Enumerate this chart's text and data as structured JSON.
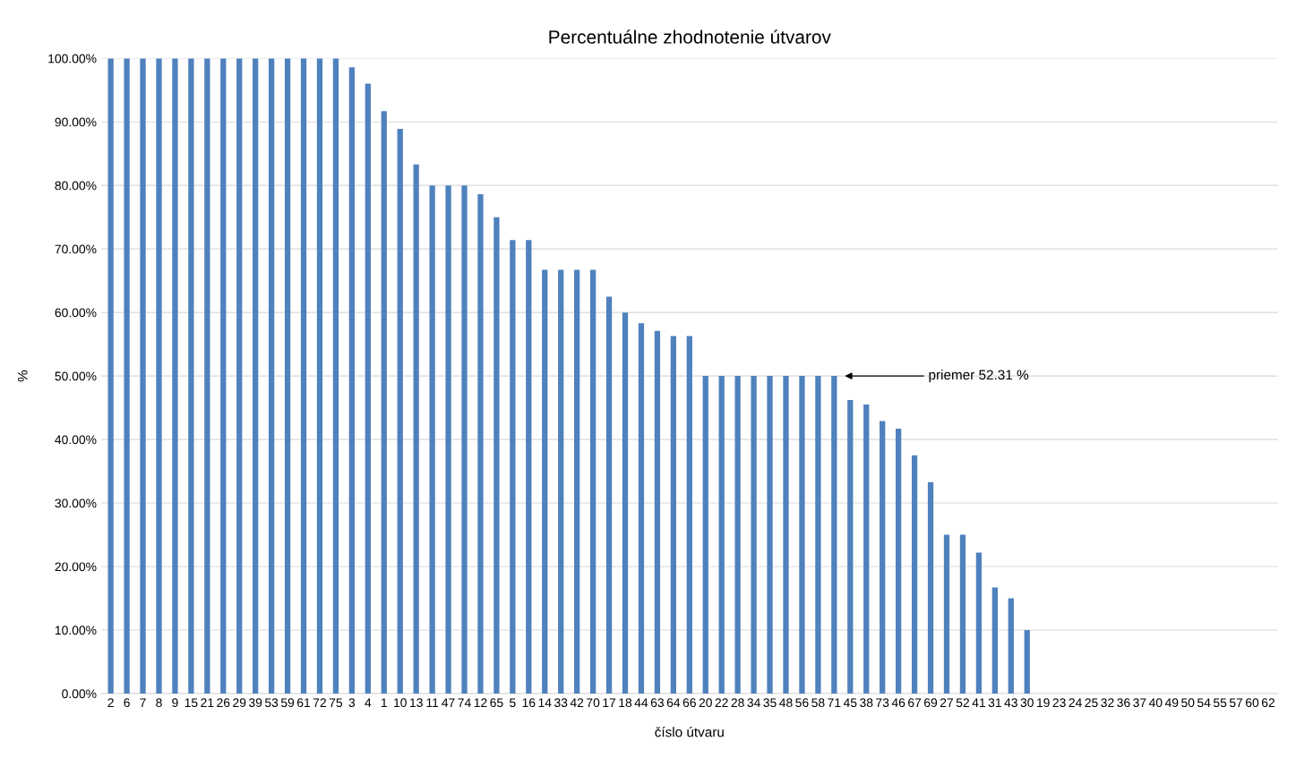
{
  "chart_data": {
    "type": "bar",
    "title": "Percentuálne zhodnotenie útvarov",
    "xlabel": "číslo útvaru",
    "ylabel": "%",
    "categories": [
      "2",
      "6",
      "7",
      "8",
      "9",
      "15",
      "21",
      "26",
      "29",
      "39",
      "53",
      "59",
      "61",
      "72",
      "75",
      "3",
      "4",
      "1",
      "10",
      "13",
      "11",
      "47",
      "74",
      "12",
      "65",
      "5",
      "16",
      "14",
      "33",
      "42",
      "70",
      "17",
      "18",
      "44",
      "63",
      "64",
      "66",
      "20",
      "22",
      "28",
      "34",
      "35",
      "48",
      "56",
      "58",
      "71",
      "45",
      "38",
      "73",
      "46",
      "67",
      "69",
      "27",
      "52",
      "41",
      "31",
      "43",
      "30",
      "19",
      "23",
      "24",
      "25",
      "32",
      "36",
      "37",
      "40",
      "49",
      "50",
      "54",
      "55",
      "57",
      "60",
      "62"
    ],
    "values": [
      100,
      100,
      100,
      100,
      100,
      100,
      100,
      100,
      100,
      100,
      100,
      100,
      100,
      100,
      100,
      98.6,
      96,
      91.7,
      88.9,
      83.3,
      80,
      80,
      80,
      78.6,
      75,
      71.4,
      71.4,
      66.7,
      66.7,
      66.7,
      66.7,
      62.5,
      60,
      58.3,
      57.1,
      56.3,
      56.3,
      50,
      50,
      50,
      50,
      50,
      50,
      50,
      50,
      50,
      46.2,
      45.5,
      42.9,
      41.7,
      37.5,
      33.3,
      25,
      25,
      22.2,
      16.7,
      15,
      10,
      0,
      0,
      0,
      0,
      0,
      0,
      0,
      0,
      0,
      0,
      0,
      0,
      0,
      0,
      0
    ],
    "color": "#4f81bd",
    "ylim": [
      0,
      100
    ],
    "yticks": [
      {
        "value": 0,
        "label": "0.00%"
      },
      {
        "value": 10,
        "label": "10.00%"
      },
      {
        "value": 20,
        "label": "20.00%"
      },
      {
        "value": 30,
        "label": "30.00%"
      },
      {
        "value": 40,
        "label": "40.00%"
      },
      {
        "value": 50,
        "label": "50.00%"
      },
      {
        "value": 60,
        "label": "60.00%"
      },
      {
        "value": 70,
        "label": "70.00%"
      },
      {
        "value": 80,
        "label": "80.00%"
      },
      {
        "value": 90,
        "label": "90.00%"
      },
      {
        "value": 100,
        "label": "100.00%"
      }
    ],
    "grid": "y",
    "annotations": [
      "priemer 52.31 %"
    ]
  }
}
